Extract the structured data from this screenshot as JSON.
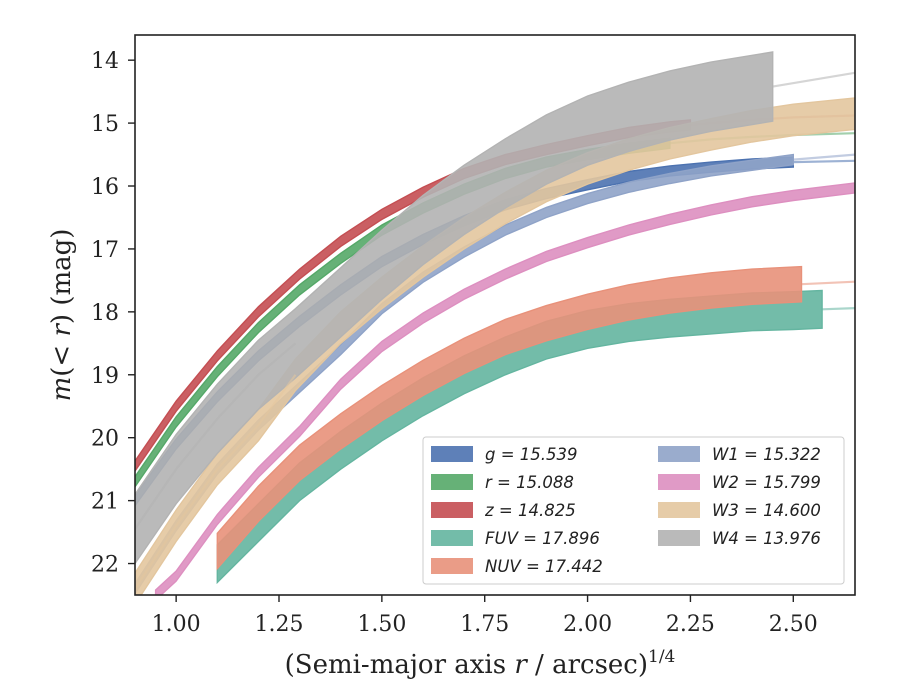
{
  "chart_data": {
    "type": "line",
    "title": "",
    "xlabel": "(Semi-major axis r / arcsec)^(1/4)",
    "ylabel": "m(< r) (mag)",
    "xlim": [
      0.9,
      2.65
    ],
    "ylim": [
      22.5,
      13.6
    ],
    "y_inverted": true,
    "grid": false,
    "legend_position": "lower-right",
    "x_ticks": [
      "1.00",
      "1.25",
      "1.50",
      "1.75",
      "2.00",
      "2.25",
      "2.50"
    ],
    "y_ticks": [
      "14",
      "15",
      "16",
      "17",
      "18",
      "19",
      "20",
      "21",
      "22"
    ],
    "series": [
      {
        "name": "g = 15.539",
        "color": "#4c72b0",
        "band": 0.08,
        "x": [
          0.9,
          1.0,
          1.1,
          1.2,
          1.3,
          1.4,
          1.5,
          1.6,
          1.7,
          1.8,
          1.9,
          2.0,
          2.1,
          2.2,
          2.3,
          2.4,
          2.5,
          2.65
        ],
        "y": [
          21.0,
          20.1,
          19.35,
          18.7,
          18.15,
          17.65,
          17.2,
          16.85,
          16.55,
          16.3,
          16.12,
          15.98,
          15.85,
          15.76,
          15.7,
          15.65,
          15.62,
          15.6
        ],
        "solid_until": 2.5
      },
      {
        "name": "r = 15.088",
        "color": "#55a868",
        "band": 0.08,
        "x": [
          0.9,
          1.0,
          1.1,
          1.2,
          1.3,
          1.4,
          1.5,
          1.6,
          1.7,
          1.8,
          1.9,
          2.0,
          2.1,
          2.2,
          2.3,
          2.4,
          2.5,
          2.65
        ],
        "y": [
          20.7,
          19.75,
          18.95,
          18.25,
          17.65,
          17.15,
          16.7,
          16.35,
          16.05,
          15.8,
          15.62,
          15.5,
          15.4,
          15.32,
          15.26,
          15.22,
          15.19,
          15.16
        ],
        "solid_until": 2.2
      },
      {
        "name": "z = 14.825",
        "color": "#c44e52",
        "band": 0.08,
        "x": [
          0.9,
          1.0,
          1.1,
          1.2,
          1.3,
          1.4,
          1.5,
          1.6,
          1.7,
          1.8,
          1.9,
          2.0,
          2.1,
          2.2,
          2.3,
          2.4,
          2.5,
          2.65
        ],
        "y": [
          20.45,
          19.5,
          18.7,
          18.0,
          17.4,
          16.88,
          16.45,
          16.1,
          15.8,
          15.58,
          15.42,
          15.28,
          15.15,
          15.06,
          15.0,
          14.95,
          14.91,
          14.88
        ],
        "solid_until": 2.25
      },
      {
        "name": "FUV = 17.896",
        "color": "#64b5a0",
        "band": 0.3,
        "x": [
          1.1,
          1.2,
          1.3,
          1.4,
          1.5,
          1.6,
          1.7,
          1.8,
          1.9,
          2.0,
          2.1,
          2.2,
          2.3,
          2.4,
          2.5,
          2.57,
          2.65
        ],
        "y": [
          22.0,
          21.35,
          20.7,
          20.2,
          19.75,
          19.35,
          19.0,
          18.7,
          18.45,
          18.28,
          18.17,
          18.1,
          18.05,
          18.0,
          17.98,
          17.96,
          17.94
        ],
        "solid_until": 2.57
      },
      {
        "name": "NUV = 17.442",
        "color": "#e8917a",
        "band": 0.28,
        "x": [
          1.1,
          1.2,
          1.3,
          1.4,
          1.5,
          1.6,
          1.7,
          1.8,
          1.9,
          2.0,
          2.1,
          2.2,
          2.3,
          2.4,
          2.52,
          2.65
        ],
        "y": [
          21.8,
          21.05,
          20.4,
          19.9,
          19.45,
          19.05,
          18.7,
          18.4,
          18.18,
          18.0,
          17.85,
          17.74,
          17.66,
          17.6,
          17.56,
          17.52
        ],
        "solid_until": 2.52
      },
      {
        "name": "W1 = 15.322",
        "color": "#8fa3c8",
        "band": 0.08,
        "x": [
          0.9,
          1.0,
          1.1,
          1.2,
          1.3,
          1.4,
          1.5,
          1.6,
          1.7,
          1.8,
          1.9,
          2.0,
          2.1,
          2.2,
          2.3,
          2.4,
          2.5,
          2.65
        ],
        "y": [
          22.4,
          21.4,
          20.5,
          19.8,
          19.2,
          18.6,
          17.95,
          17.45,
          17.05,
          16.7,
          16.42,
          16.2,
          16.02,
          15.88,
          15.76,
          15.67,
          15.58,
          15.5
        ],
        "solid_until": 2.5
      },
      {
        "name": "W2 = 15.799",
        "color": "#dd8fc0",
        "band": 0.08,
        "x": [
          0.95,
          1.0,
          1.1,
          1.2,
          1.3,
          1.4,
          1.5,
          1.6,
          1.7,
          1.8,
          1.9,
          2.0,
          2.1,
          2.2,
          2.3,
          2.4,
          2.5,
          2.65
        ],
        "y": [
          22.5,
          22.2,
          21.3,
          20.55,
          19.9,
          19.15,
          18.55,
          18.1,
          17.72,
          17.4,
          17.12,
          16.9,
          16.7,
          16.53,
          16.38,
          16.25,
          16.15,
          16.03
        ],
        "solid_until": 2.65
      },
      {
        "name": "W3 = 14.600",
        "color": "#e3c69e",
        "band": 0.25,
        "x": [
          0.9,
          1.0,
          1.1,
          1.2,
          1.29,
          1.4,
          1.5,
          1.6,
          1.7,
          1.8,
          1.9,
          2.0,
          2.1,
          2.2,
          2.3,
          2.4,
          2.5,
          2.65
        ],
        "y": [
          22.4,
          21.4,
          20.5,
          19.8,
          19.0,
          18.25,
          17.7,
          17.2,
          16.75,
          16.35,
          16.0,
          15.72,
          15.5,
          15.32,
          15.18,
          15.05,
          14.95,
          14.85
        ],
        "solid_until": 2.65
      },
      {
        "name": "W4 = 13.976",
        "color": "#b3b3b3",
        "band": 0.55,
        "x": [
          0.9,
          1.0,
          1.1,
          1.2,
          1.29,
          1.4,
          1.5,
          1.6,
          1.7,
          1.8,
          1.9,
          2.0,
          2.1,
          2.2,
          2.3,
          2.45,
          2.65
        ],
        "y": [
          21.45,
          20.5,
          19.7,
          19.0,
          18.5,
          17.85,
          17.25,
          16.7,
          16.22,
          15.8,
          15.42,
          15.12,
          14.9,
          14.72,
          14.58,
          14.42,
          14.2
        ],
        "solid_until": 2.45
      }
    ]
  }
}
